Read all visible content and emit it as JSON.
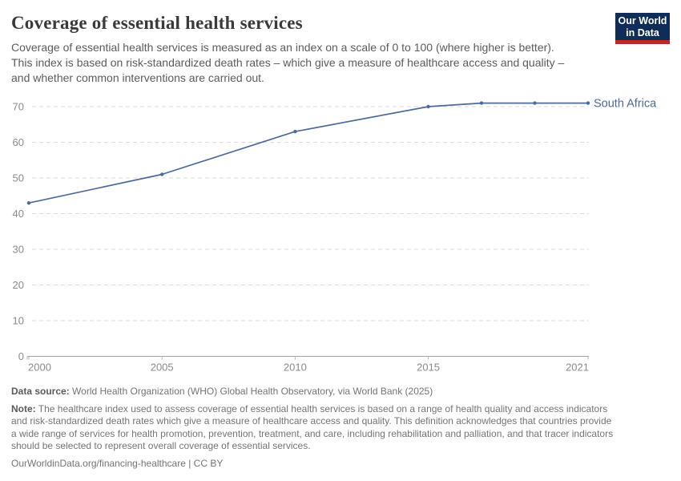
{
  "header": {
    "title": "Coverage of essential health services",
    "subtitle_lines": [
      "Coverage of essential health services is measured as an index on a scale of 0 to 100 (where higher is better).",
      "This index is based on risk-standardized death rates – which give a measure of healthcare access and quality –",
      "and whether common interventions are carried out."
    ],
    "logo": {
      "line1": "Our World",
      "line2": "in Data"
    }
  },
  "chart_data": {
    "type": "line",
    "title": "Coverage of essential health services",
    "xlabel": "",
    "ylabel": "",
    "xlim": [
      2000,
      2021
    ],
    "ylim": [
      0,
      70
    ],
    "x_ticks": [
      2000,
      2005,
      2010,
      2015,
      2021
    ],
    "y_ticks": [
      0,
      10,
      20,
      30,
      40,
      50,
      60,
      70
    ],
    "grid": "horizontal-dashed",
    "legend_position": "end-of-line-label",
    "series": [
      {
        "name": "South Africa",
        "color": "#4C6A9C",
        "points": [
          [
            2000,
            43
          ],
          [
            2005,
            51
          ],
          [
            2010,
            63
          ],
          [
            2015,
            70
          ],
          [
            2017,
            71
          ],
          [
            2019,
            71
          ],
          [
            2021,
            71
          ]
        ]
      }
    ]
  },
  "footer": {
    "data_source_label": "Data source:",
    "data_source_text": "World Health Organization (WHO) Global Health Observatory, via World Bank (2025)",
    "note_label": "Note:",
    "note_lines": [
      "The healthcare index used to assess coverage of essential health services is based on a range of health quality and access indicators",
      "and risk-standardized death rates which give a measure of healthcare access and quality. This definition acknowledges that countries provide",
      "a wide range of services for health promotion, prevention, treatment, and care, including rehabilitation and palliation, and that tracer indicators",
      "should be selected to represent overall coverage of essential services."
    ],
    "citation": "OurWorldinData.org/financing-healthcare | CC BY"
  },
  "colors": {
    "line": "#4C6A9C",
    "grid": "#dbdbdb",
    "axis": "#a3a3a3",
    "tick": "#b5b5b5",
    "tick_label": "#8b8b8b",
    "logo_navy": "#102d5a",
    "logo_red": "#c0272d"
  }
}
